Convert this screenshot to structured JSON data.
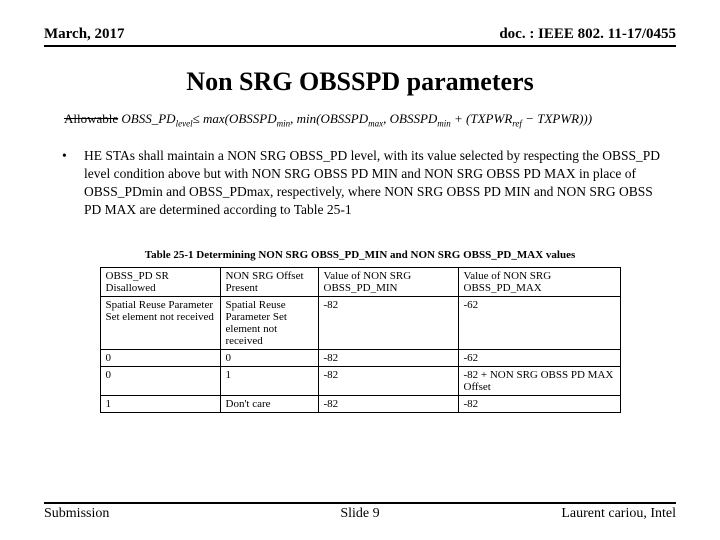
{
  "header": {
    "left": "March, 2017",
    "right": "doc. : IEEE 802. 11-17/0455"
  },
  "title": "Non SRG OBSSPD parameters",
  "formula": {
    "label_struck": "Allowable",
    "expr_prefix": "OBSS_PD",
    "expr_sub1": "level",
    "expr_le": "≤ max(OBSSPD",
    "expr_sub2": "min",
    "expr_mid": ", min(OBSSPD",
    "expr_sub3": "max",
    "expr_mid2": ", OBSSPD",
    "expr_sub4": "min",
    "expr_mid3": " + (TXPWR",
    "expr_sub5": "ref",
    "expr_end": " − TXPWR)))"
  },
  "bullet": "HE STAs shall maintain a NON SRG OBSS_PD level, with its value selected by respecting the OBSS_PD level condition above but with NON SRG OBSS PD MIN and NON SRG OBSS PD MAX in place of OBSS_PDmin and OBSS_PDmax, respectively, where  NON SRG OBSS PD MIN and NON SRG OBSS PD MAX are determined according to Table 25-1",
  "tableCaption": "Table 25-1 Determining NON SRG OBSS_PD_MIN and NON SRG OBSS_PD_MAX values",
  "columns": [
    "OBSS_PD SR Disallowed",
    "NON SRG Offset Present",
    "Value of NON SRG OBSS_PD_MIN",
    "Value of NON SRG OBSS_PD_MAX"
  ],
  "rows": [
    [
      "Spatial Reuse Parameter Set element not received",
      "Spatial Reuse Parameter Set element not received",
      "-82",
      "-62"
    ],
    [
      "0",
      "0",
      "-82",
      "-62"
    ],
    [
      "0",
      "1",
      "-82",
      "-82 + NON SRG OBSS PD MAX Offset"
    ],
    [
      "1",
      "Don't care",
      "-82",
      "-82"
    ]
  ],
  "footer": {
    "left": "Submission",
    "center": "Slide 9",
    "right": "Laurent cariou, Intel"
  },
  "colors": {
    "bg": "#ffffff",
    "fg": "#000000",
    "ghost": "#c9c9c9"
  }
}
